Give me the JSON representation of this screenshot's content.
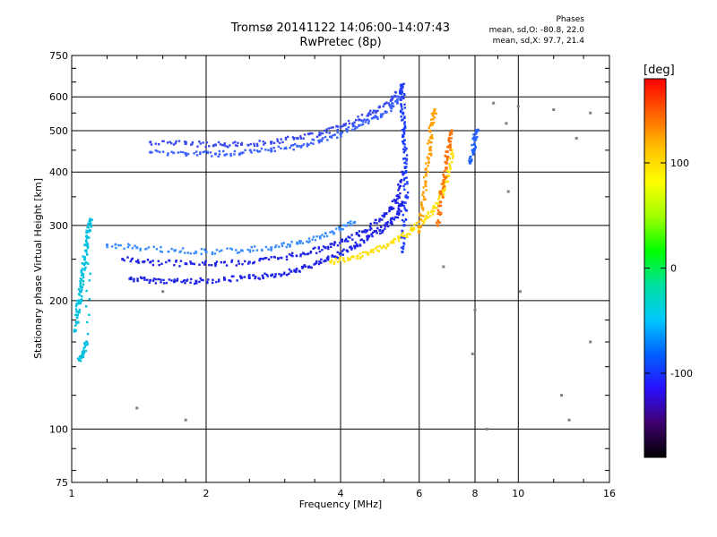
{
  "header": {
    "title_line1": "Tromsø 20141122 14:06:00–14:07:43",
    "title_line2": "RwPretec (8p)"
  },
  "stats": {
    "heading": "Phases",
    "line_o": "mean, sd,O: -80.8, 22.0",
    "line_x": "mean, sd,X:  97.7, 21.4"
  },
  "colorbar": {
    "unit": "[deg]",
    "ticks": [
      {
        "value": 100,
        "label": "100"
      },
      {
        "value": 0,
        "label": "0"
      },
      {
        "value": -100,
        "label": "-100"
      }
    ],
    "range": [
      -180,
      180
    ],
    "colors": [
      "#000000",
      "#400070",
      "#2a10ff",
      "#0060ff",
      "#00c8ff",
      "#00e0a0",
      "#00ff00",
      "#a0ff00",
      "#ffff00",
      "#ffc000",
      "#ff6000",
      "#ff0000"
    ]
  },
  "chart_data": {
    "type": "scatter",
    "xlabel": "Frequency [MHz]",
    "ylabel": "Stationary phase Virtual Height [km]",
    "xscale": "log",
    "yscale": "log",
    "xlim": [
      1,
      16
    ],
    "ylim": [
      75,
      750
    ],
    "grid": true,
    "x_ticks": [
      {
        "value": 1,
        "label": "1"
      },
      {
        "value": 2,
        "label": "2"
      },
      {
        "value": 4,
        "label": "4"
      },
      {
        "value": 6,
        "label": "6"
      },
      {
        "value": 8,
        "label": "8"
      },
      {
        "value": 10,
        "label": "10"
      },
      {
        "value": 16,
        "label": "16"
      }
    ],
    "y_ticks": [
      {
        "value": 75,
        "label": "75"
      },
      {
        "value": 100,
        "label": "100"
      },
      {
        "value": 200,
        "label": "200"
      },
      {
        "value": 300,
        "label": "300"
      },
      {
        "value": 400,
        "label": "400"
      },
      {
        "value": 500,
        "label": "500"
      },
      {
        "value": 600,
        "label": "600"
      },
      {
        "value": 750,
        "label": "750"
      }
    ],
    "series": [
      {
        "color": "#1e22e6",
        "points": [
          [
            1.35,
            225
          ],
          [
            1.5,
            223
          ],
          [
            1.7,
            222
          ],
          [
            1.9,
            222
          ],
          [
            2.2,
            224
          ],
          [
            2.5,
            226
          ],
          [
            2.8,
            229
          ],
          [
            3.1,
            234
          ],
          [
            3.4,
            240
          ],
          [
            3.7,
            248
          ],
          [
            4.0,
            258
          ],
          [
            4.3,
            268
          ],
          [
            4.6,
            280
          ],
          [
            4.9,
            292
          ],
          [
            5.2,
            305
          ],
          [
            5.4,
            320
          ],
          [
            5.5,
            340
          ]
        ]
      },
      {
        "color": "#1e22e6",
        "points": [
          [
            1.3,
            250
          ],
          [
            1.5,
            246
          ],
          [
            1.8,
            244
          ],
          [
            2.1,
            244
          ],
          [
            2.5,
            246
          ],
          [
            2.9,
            251
          ],
          [
            3.3,
            258
          ],
          [
            3.7,
            266
          ],
          [
            4.1,
            276
          ],
          [
            4.5,
            290
          ],
          [
            4.9,
            310
          ],
          [
            5.2,
            330
          ],
          [
            5.4,
            350
          ],
          [
            5.5,
            400
          ]
        ]
      },
      {
        "color": "#3a8cff",
        "points": [
          [
            1.2,
            270
          ],
          [
            1.4,
            266
          ],
          [
            1.7,
            262
          ],
          [
            2.0,
            260
          ],
          [
            2.4,
            262
          ],
          [
            2.8,
            266
          ],
          [
            3.2,
            272
          ],
          [
            3.6,
            282
          ],
          [
            4.0,
            294
          ],
          [
            4.3,
            305
          ]
        ]
      },
      {
        "color": "#3a48f0",
        "points": [
          [
            1.5,
            470
          ],
          [
            1.8,
            466
          ],
          [
            2.1,
            463
          ],
          [
            2.4,
            464
          ],
          [
            2.8,
            470
          ],
          [
            3.2,
            480
          ],
          [
            3.6,
            493
          ],
          [
            4.0,
            510
          ],
          [
            4.4,
            530
          ],
          [
            4.8,
            555
          ],
          [
            5.2,
            590
          ],
          [
            5.5,
            630
          ]
        ]
      },
      {
        "color": "#3a60ff",
        "points": [
          [
            1.5,
            445
          ],
          [
            1.8,
            442
          ],
          [
            2.1,
            441
          ],
          [
            2.4,
            443
          ],
          [
            2.8,
            449
          ],
          [
            3.2,
            460
          ],
          [
            3.6,
            474
          ],
          [
            4.0,
            492
          ],
          [
            4.4,
            514
          ],
          [
            4.8,
            538
          ],
          [
            5.2,
            565
          ],
          [
            5.4,
            600
          ]
        ]
      },
      {
        "color": "#1a3cff",
        "points": [
          [
            5.5,
            260
          ],
          [
            5.55,
            300
          ],
          [
            5.6,
            350
          ],
          [
            5.6,
            400
          ],
          [
            5.58,
            450
          ],
          [
            5.55,
            500
          ],
          [
            5.52,
            550
          ],
          [
            5.5,
            600
          ],
          [
            5.48,
            640
          ]
        ]
      },
      {
        "color": "#ffe000",
        "points": [
          [
            3.8,
            246
          ],
          [
            4.2,
            250
          ],
          [
            4.6,
            258
          ],
          [
            5.0,
            268
          ],
          [
            5.4,
            280
          ],
          [
            5.8,
            292
          ],
          [
            6.2,
            310
          ],
          [
            6.5,
            330
          ],
          [
            6.8,
            360
          ],
          [
            7.0,
            400
          ],
          [
            7.1,
            450
          ]
        ]
      },
      {
        "color": "#ffa000",
        "points": [
          [
            6.0,
            290
          ],
          [
            6.1,
            330
          ],
          [
            6.2,
            380
          ],
          [
            6.3,
            430
          ],
          [
            6.35,
            470
          ],
          [
            6.4,
            520
          ],
          [
            6.5,
            560
          ]
        ]
      },
      {
        "color": "#ff7000",
        "points": [
          [
            6.6,
            300
          ],
          [
            6.7,
            340
          ],
          [
            6.8,
            380
          ],
          [
            6.9,
            420
          ],
          [
            7.0,
            460
          ],
          [
            7.1,
            500
          ]
        ]
      },
      {
        "color": "#00c0e0",
        "points": [
          [
            1.02,
            170
          ],
          [
            1.03,
            185
          ],
          [
            1.04,
            200
          ],
          [
            1.05,
            215
          ],
          [
            1.06,
            230
          ],
          [
            1.07,
            250
          ],
          [
            1.08,
            270
          ],
          [
            1.09,
            290
          ],
          [
            1.1,
            310
          ],
          [
            1.08,
            160
          ],
          [
            1.06,
            150
          ],
          [
            1.04,
            145
          ]
        ]
      },
      {
        "color": "#2060ff",
        "points": [
          [
            7.8,
            420
          ],
          [
            7.9,
            450
          ],
          [
            8.0,
            480
          ],
          [
            8.1,
            500
          ]
        ]
      },
      {
        "color": "#808080",
        "points": [
          [
            9.4,
            520
          ],
          [
            9.5,
            360
          ],
          [
            10.0,
            570
          ],
          [
            10.1,
            210
          ],
          [
            12.0,
            560
          ],
          [
            13.5,
            480
          ],
          [
            14.5,
            550
          ],
          [
            8.8,
            580
          ],
          [
            8.0,
            190
          ],
          [
            7.9,
            150
          ],
          [
            6.8,
            240
          ],
          [
            8.5,
            100
          ],
          [
            12.5,
            120
          ],
          [
            13.0,
            105
          ],
          [
            14.5,
            160
          ],
          [
            1.4,
            112
          ],
          [
            1.8,
            105
          ],
          [
            1.6,
            210
          ]
        ]
      }
    ]
  }
}
